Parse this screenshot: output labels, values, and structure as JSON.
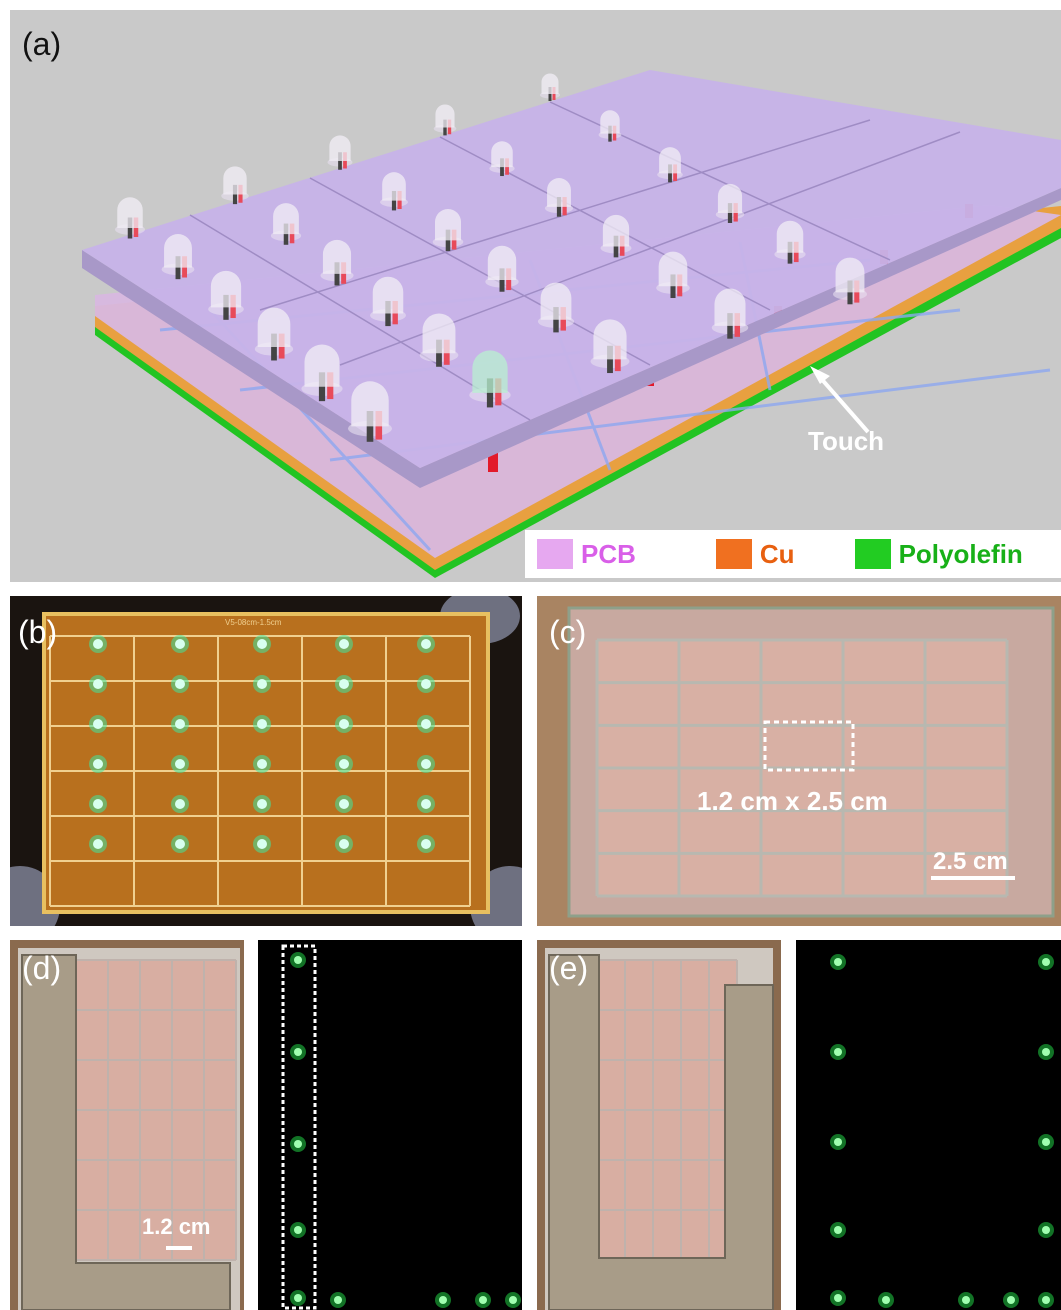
{
  "panel_a": {
    "label": "(a)",
    "touch_label": "Touch",
    "legend": [
      {
        "name": "PCB",
        "color": "#e6a8f0",
        "text_color": "#d95fe8"
      },
      {
        "name": "Cu",
        "color": "#f07020",
        "text_color": "#e86010"
      },
      {
        "name": "Polyolefin",
        "color": "#22cc22",
        "text_color": "#18b018"
      }
    ],
    "colors": {
      "background": "#c9c9c9",
      "top_board": "#c7b3e8",
      "bottom_board": "#d8b8e0",
      "copper": "#e8a040",
      "polyolefin": "#22c422",
      "led_lit": "#b8f0d0"
    }
  },
  "panel_b": {
    "label": "(b)",
    "board_text": "V5-08cm-1.5cm",
    "led_rows": 6,
    "led_cols": 5
  },
  "panel_c": {
    "label": "(c)",
    "cell_label": "1.2 cm x 2.5 cm",
    "scale_label": "2.5 cm"
  },
  "panel_d": {
    "label": "(d)",
    "scale_label": "1.2 cm"
  },
  "panel_e": {
    "label": "(e)"
  }
}
